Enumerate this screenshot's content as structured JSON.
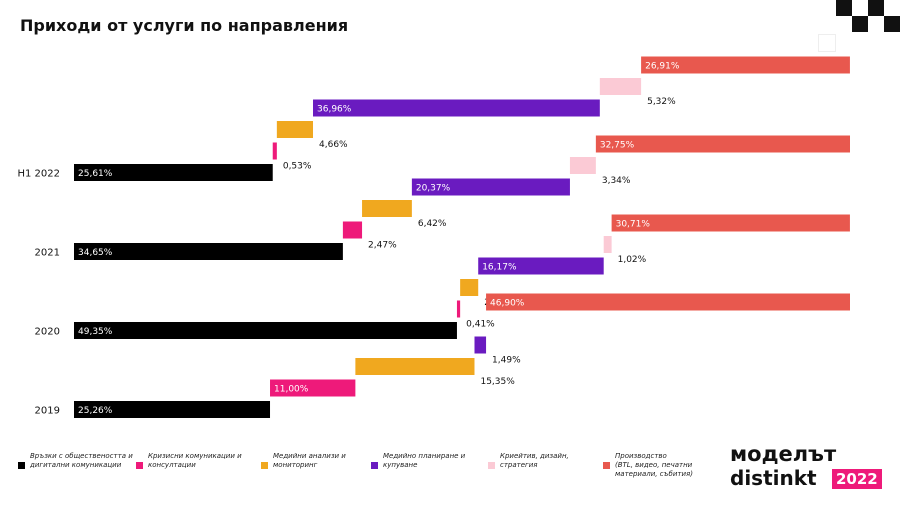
{
  "title": "Приходи от услуги по направления",
  "colors": {
    "pr": "#000000",
    "crisis": "#ee1a7a",
    "media_analysis": "#f0a81f",
    "media_planning": "#6a1bc0",
    "creative": "#fbcad5",
    "production": "#e8584e"
  },
  "chart_data": {
    "type": "bar",
    "stacked": true,
    "orientation": "horizontal",
    "layout": "staggered",
    "categories": [
      "H1 2022",
      "2021",
      "2020",
      "2019"
    ],
    "series": [
      {
        "name": "Връзки с обществеността и дигитални комуникации",
        "color_key": "pr",
        "values": [
          25.61,
          34.65,
          49.35,
          25.26
        ],
        "labels": [
          "25,61%",
          "34,65%",
          "49,35%",
          "25,26%"
        ]
      },
      {
        "name": "Кризисни комуникации и консултации",
        "color_key": "crisis",
        "values": [
          0.53,
          2.47,
          0.41,
          11.0
        ],
        "labels": [
          "0,53%",
          "2,47%",
          "0,41%",
          "11,00%"
        ]
      },
      {
        "name": "Медийни анализи и мониторинг",
        "color_key": "media_analysis",
        "values": [
          4.66,
          6.42,
          2.33,
          15.35
        ],
        "labels": [
          "4,66%",
          "6,42%",
          "2,33%",
          "15,35%"
        ]
      },
      {
        "name": "Медийно планиране и купуване",
        "color_key": "media_planning",
        "values": [
          36.96,
          20.37,
          16.17,
          1.49
        ],
        "labels": [
          "36,96%",
          "20,37%",
          "16,17%",
          "1,49%"
        ]
      },
      {
        "name": "Криейтив, дизайн, стратегия",
        "color_key": "creative",
        "values": [
          5.32,
          3.34,
          1.02,
          0.0
        ],
        "labels": [
          "5,32%",
          "3,34%",
          "1,02%",
          ""
        ]
      },
      {
        "name": "Производство (BTL, видео, печатни материали, събития)",
        "color_key": "production",
        "values": [
          26.91,
          32.75,
          30.71,
          46.9
        ],
        "labels": [
          "26,91%",
          "32,75%",
          "30,71%",
          "46,90%"
        ]
      }
    ],
    "xlim": [
      0,
      100
    ],
    "grid": false,
    "legend_position": "bottom"
  },
  "legend": [
    {
      "label": "Връзки с обществеността и\nдигитални комуникации",
      "color_key": "pr"
    },
    {
      "label": "Кризисни комуникации и\nконсултации",
      "color_key": "crisis"
    },
    {
      "label": "Медийни анализи и\nмониторинг",
      "color_key": "media_analysis"
    },
    {
      "label": "Медийно планиране и\nкупуване",
      "color_key": "media_planning"
    },
    {
      "label": "Криейтив, дизайн,\nстратегия",
      "color_key": "creative"
    },
    {
      "label": "Производство\n(BTL, видео, печатни\nматериали, събития)",
      "color_key": "production"
    }
  ],
  "logo": {
    "line1": "моделът",
    "line2": "distinkt",
    "year": "2022"
  }
}
